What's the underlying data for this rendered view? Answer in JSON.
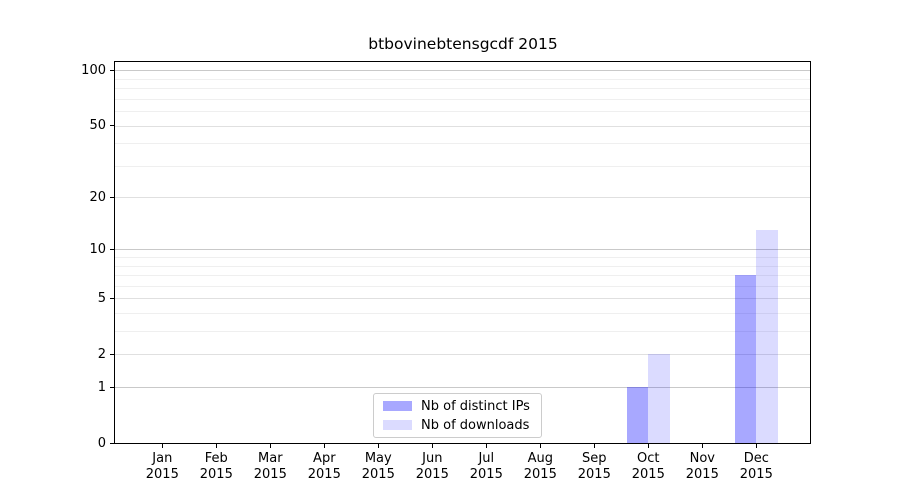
{
  "chart_data": {
    "type": "bar",
    "title": "btbovinebtensgcdf 2015",
    "categories": [
      "Jan 2015",
      "Feb 2015",
      "Mar 2015",
      "Apr 2015",
      "May 2015",
      "Jun 2015",
      "Jul 2015",
      "Aug 2015",
      "Sep 2015",
      "Oct 2015",
      "Nov 2015",
      "Dec 2015"
    ],
    "series": [
      {
        "name": "Nb of distinct IPs",
        "base_color": "#0000ff",
        "alpha": 0.34,
        "apparent_color": "#a9a9fa",
        "values": [
          0,
          0,
          0,
          0,
          0,
          0,
          0,
          0,
          0,
          1,
          0,
          7
        ]
      },
      {
        "name": "Nb of downloads",
        "base_color": "#0000ff",
        "alpha": 0.14,
        "apparent_color": "#dbdbfa",
        "values": [
          0,
          0,
          0,
          0,
          0,
          0,
          0,
          0,
          0,
          2,
          0,
          13
        ]
      }
    ],
    "xlabel": "",
    "ylabel": "",
    "yscale": "log1p",
    "ylim": [
      0,
      112
    ],
    "yticks": [
      0,
      1,
      2,
      5,
      10,
      20,
      50,
      100
    ],
    "minor_gridlines": [
      3,
      4,
      6,
      7,
      8,
      9,
      30,
      40,
      60,
      70,
      80,
      90
    ],
    "grid": "horizontal",
    "legend_position": "lower center",
    "axis_color": "#000000",
    "grid_major_color": "#c9c9c9",
    "grid_minor_color": "#efefef",
    "background_color": "#ffffff"
  }
}
